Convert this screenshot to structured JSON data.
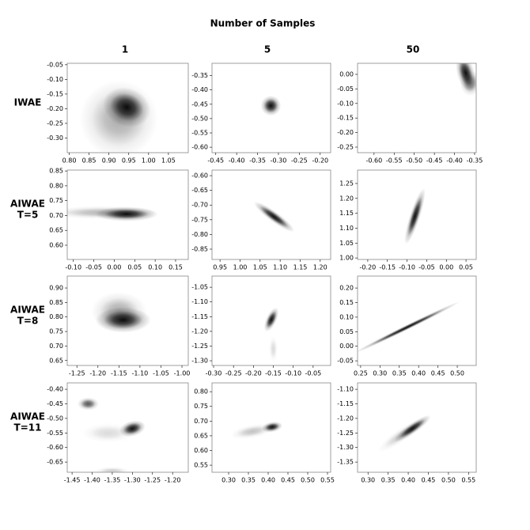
{
  "title": "Number of Samples",
  "columns": [
    "1",
    "5",
    "50"
  ],
  "rows": [
    [
      "IWAE"
    ],
    [
      "AIWAE",
      "T=5"
    ],
    [
      "AIWAE",
      "T=8"
    ],
    [
      "AIWAE",
      "T=11"
    ]
  ],
  "chart_data": [
    {
      "type": "density",
      "xlim": [
        0.795,
        1.1
      ],
      "ylim": [
        -0.35,
        -0.045
      ],
      "xticks": [
        {
          "value": 0.8,
          "label": "0.80"
        },
        0.85,
        {
          "value": 0.9,
          "label": "0.90"
        },
        0.95,
        {
          "value": 1,
          "label": "1.00"
        },
        1.05
      ],
      "yticks": [
        -0.05,
        {
          "value": -0.1,
          "label": "-0.10"
        },
        -0.15,
        {
          "value": -0.2,
          "label": "-0.20"
        },
        -0.25,
        {
          "value": -0.3,
          "label": "-0.30"
        }
      ],
      "modes": [
        {
          "x": 0.945,
          "y": -0.195,
          "sx": 0.028,
          "sy": 0.03,
          "angle": 20,
          "weight": 1
        },
        {
          "x": 0.925,
          "y": -0.235,
          "sx": 0.045,
          "sy": 0.06,
          "angle": 0,
          "weight": 0.35
        }
      ]
    },
    {
      "type": "density",
      "xlim": [
        -0.459,
        -0.175
      ],
      "ylim": [
        -0.619,
        -0.307
      ],
      "xticks": [
        -0.45,
        {
          "value": -0.4,
          "label": "-0.40"
        },
        -0.35,
        {
          "value": -0.3,
          "label": "-0.30"
        },
        -0.25,
        {
          "value": -0.2,
          "label": "-0.20"
        }
      ],
      "yticks": [
        -0.35,
        {
          "value": -0.4,
          "label": "-0.40"
        },
        -0.45,
        {
          "value": -0.5,
          "label": "-0.50"
        },
        -0.55,
        {
          "value": -0.6,
          "label": "-0.60"
        }
      ],
      "modes": [
        {
          "x": -0.318,
          "y": -0.455,
          "sx": 0.011,
          "sy": 0.016,
          "angle": 20,
          "weight": 1
        }
      ]
    },
    {
      "type": "density",
      "xlim": [
        -0.641,
        -0.346
      ],
      "ylim": [
        -0.269,
        0.038
      ],
      "xticks": [
        {
          "value": -0.6,
          "label": "-0.60"
        },
        -0.55,
        {
          "value": -0.5,
          "label": "-0.50"
        },
        -0.45,
        {
          "value": -0.4,
          "label": "-0.40"
        },
        -0.35
      ],
      "yticks": [
        {
          "value": 0,
          "label": "0.00"
        },
        -0.05,
        {
          "value": -0.1,
          "label": "-0.10"
        },
        -0.15,
        {
          "value": -0.2,
          "label": "-0.20"
        },
        -0.25
      ],
      "modes": [
        {
          "x": -0.372,
          "y": 0.005,
          "sx": 0.01,
          "sy": 0.03,
          "angle": -15,
          "weight": 1
        },
        {
          "x": -0.36,
          "y": -0.03,
          "sx": 0.012,
          "sy": 0.02,
          "angle": 0,
          "weight": 0.5
        }
      ]
    },
    {
      "type": "density",
      "xlim": [
        -0.115,
        0.181
      ],
      "ylim": [
        0.552,
        0.853
      ],
      "xticks": [
        {
          "value": -0.1,
          "label": "-0.10"
        },
        -0.05,
        {
          "value": 0,
          "label": "0.00"
        },
        0.05,
        {
          "value": 0.1,
          "label": "0.10"
        },
        0.15
      ],
      "yticks": [
        0.85,
        {
          "value": 0.8,
          "label": "0.80"
        },
        0.75,
        {
          "value": 0.7,
          "label": "0.70"
        },
        0.65,
        {
          "value": 0.6,
          "label": "0.60"
        }
      ],
      "modes": [
        {
          "x": 0.03,
          "y": 0.705,
          "sx": 0.035,
          "sy": 0.011,
          "angle": 0,
          "weight": 1
        },
        {
          "x": -0.03,
          "y": 0.71,
          "sx": 0.06,
          "sy": 0.01,
          "angle": 0,
          "weight": 0.3
        }
      ]
    },
    {
      "type": "density",
      "xlim": [
        0.93,
        1.226
      ],
      "ylim": [
        -0.885,
        -0.581
      ],
      "xticks": [
        0.95,
        {
          "value": 1,
          "label": "1.00"
        },
        1.05,
        {
          "value": 1.1,
          "label": "1.10"
        },
        1.15,
        {
          "value": 1.2,
          "label": "1.20"
        }
      ],
      "yticks": [
        {
          "value": -0.6,
          "label": "-0.60"
        },
        -0.65,
        {
          "value": -0.7,
          "label": "-0.70"
        },
        -0.75,
        {
          "value": -0.8,
          "label": "-0.80"
        },
        -0.85
      ],
      "modes": [
        {
          "x": 1.085,
          "y": -0.74,
          "sx": 0.028,
          "sy": 0.008,
          "angle": 36,
          "weight": 1
        }
      ]
    },
    {
      "type": "density",
      "xlim": [
        -0.226,
        0.076
      ],
      "ylim": [
        0.995,
        1.295
      ],
      "xticks": [
        {
          "value": -0.2,
          "label": "-0.20"
        },
        -0.15,
        {
          "value": -0.1,
          "label": "-0.10"
        },
        -0.05,
        {
          "value": 0,
          "label": "0.00"
        },
        0.05
      ],
      "yticks": [
        1.25,
        {
          "value": 1.2,
          "label": "1.20"
        },
        1.15,
        {
          "value": 1.1,
          "label": "1.10"
        },
        1.05,
        {
          "value": 1,
          "label": "1.00"
        }
      ],
      "modes": [
        {
          "x": -0.08,
          "y": 1.14,
          "sx": 0.006,
          "sy": 0.045,
          "angle": 18,
          "weight": 1
        }
      ]
    },
    {
      "type": "density",
      "xlim": [
        -1.273,
        -0.985
      ],
      "ylim": [
        0.633,
        0.941
      ],
      "xticks": [
        -1.25,
        {
          "value": -1.2,
          "label": "-1.20"
        },
        -1.15,
        {
          "value": -1.1,
          "label": "-1.10"
        },
        -1.05,
        {
          "value": -1,
          "label": "-1.00"
        }
      ],
      "yticks": [
        {
          "value": 0.9,
          "label": "0.90"
        },
        0.85,
        {
          "value": 0.8,
          "label": "0.80"
        },
        0.75,
        {
          "value": 0.7,
          "label": "0.70"
        },
        0.65
      ],
      "modes": [
        {
          "x": -1.14,
          "y": 0.79,
          "sx": 0.03,
          "sy": 0.02,
          "angle": 0,
          "weight": 1
        },
        {
          "x": -1.15,
          "y": 0.82,
          "sx": 0.03,
          "sy": 0.03,
          "angle": 0,
          "weight": 0.35
        }
      ]
    },
    {
      "type": "density",
      "xlim": [
        -0.304,
        -0.006
      ],
      "ylim": [
        -1.316,
        -1.012
      ],
      "xticks": [
        {
          "value": -0.3,
          "label": "-0.30"
        },
        -0.25,
        {
          "value": -0.2,
          "label": "-0.20"
        },
        -0.15,
        {
          "value": -0.1,
          "label": "-0.10"
        },
        -0.05
      ],
      "yticks": [
        -1.05,
        {
          "value": -1.1,
          "label": "-1.10"
        },
        -1.15,
        {
          "value": -1.2,
          "label": "-1.20"
        },
        -1.25,
        {
          "value": -1.3,
          "label": "-1.30"
        }
      ],
      "modes": [
        {
          "x": -0.155,
          "y": -1.16,
          "sx": 0.006,
          "sy": 0.02,
          "angle": 25,
          "weight": 1
        },
        {
          "x": -0.15,
          "y": -1.26,
          "sx": 0.005,
          "sy": 0.02,
          "angle": 0,
          "weight": 0.15
        }
      ]
    },
    {
      "type": "density",
      "xlim": [
        0.242,
        0.549
      ],
      "ylim": [
        -0.066,
        0.241
      ],
      "xticks": [
        0.25,
        {
          "value": 0.3,
          "label": "0.30"
        },
        0.35,
        {
          "value": 0.4,
          "label": "0.40"
        },
        0.45,
        {
          "value": 0.5,
          "label": "0.50"
        }
      ],
      "yticks": [
        {
          "value": 0.2,
          "label": "0.20"
        },
        0.15,
        {
          "value": 0.1,
          "label": "0.10"
        },
        0.05,
        {
          "value": 0,
          "label": "0.00"
        },
        -0.05
      ],
      "modes": [
        {
          "x": 0.37,
          "y": 0.065,
          "sx": 0.07,
          "sy": 0.004,
          "angle": -26,
          "weight": 1
        }
      ]
    },
    {
      "type": "density",
      "xlim": [
        -1.462,
        -1.161
      ],
      "ylim": [
        -0.685,
        -0.378
      ],
      "xticks": [
        -1.45,
        {
          "value": -1.4,
          "label": "-1.40"
        },
        -1.35,
        {
          "value": -1.3,
          "label": "-1.30"
        },
        -1.25,
        {
          "value": -1.2,
          "label": "-1.20"
        }
      ],
      "yticks": [
        {
          "value": -0.4,
          "label": "-0.40"
        },
        -0.45,
        {
          "value": -0.5,
          "label": "-0.50"
        },
        -0.55,
        {
          "value": -0.6,
          "label": "-0.60"
        },
        -0.65
      ],
      "modes": [
        {
          "x": -1.3,
          "y": -0.535,
          "sx": 0.015,
          "sy": 0.012,
          "angle": -15,
          "weight": 1
        },
        {
          "x": -1.41,
          "y": -0.45,
          "sx": 0.012,
          "sy": 0.01,
          "angle": 0,
          "weight": 0.7
        },
        {
          "x": -1.35,
          "y": -0.68,
          "sx": 0.02,
          "sy": 0.006,
          "angle": 0,
          "weight": 0.2
        },
        {
          "x": -1.36,
          "y": -0.55,
          "sx": 0.03,
          "sy": 0.015,
          "angle": 0,
          "weight": 0.15
        }
      ]
    },
    {
      "type": "density",
      "xlim": [
        0.258,
        0.558
      ],
      "ylim": [
        0.526,
        0.83
      ],
      "xticks": [
        {
          "value": 0.3,
          "label": "0.30"
        },
        0.35,
        {
          "value": 0.4,
          "label": "0.40"
        },
        0.45,
        {
          "value": 0.5,
          "label": "0.50"
        },
        0.55
      ],
      "yticks": [
        {
          "value": 0.8,
          "label": "0.80"
        },
        0.75,
        {
          "value": 0.7,
          "label": "0.70"
        },
        0.65,
        {
          "value": 0.6,
          "label": "0.60"
        },
        0.55
      ],
      "modes": [
        {
          "x": 0.41,
          "y": 0.68,
          "sx": 0.012,
          "sy": 0.008,
          "angle": -10,
          "weight": 1
        },
        {
          "x": 0.36,
          "y": 0.665,
          "sx": 0.025,
          "sy": 0.01,
          "angle": -10,
          "weight": 0.25
        }
      ]
    },
    {
      "type": "density",
      "xlim": [
        0.274,
        0.569
      ],
      "ylim": [
        -1.385,
        -1.078
      ],
      "xticks": [
        {
          "value": 0.3,
          "label": "0.30"
        },
        0.35,
        {
          "value": 0.4,
          "label": "0.40"
        },
        0.45,
        {
          "value": 0.5,
          "label": "0.50"
        },
        0.55
      ],
      "yticks": [
        {
          "value": -1.1,
          "label": "-1.10"
        },
        -1.15,
        {
          "value": -1.2,
          "label": "-1.20"
        },
        -1.25,
        {
          "value": -1.3,
          "label": "-1.30"
        },
        -1.35
      ],
      "modes": [
        {
          "x": 0.41,
          "y": -1.235,
          "sx": 0.025,
          "sy": 0.008,
          "angle": -35,
          "weight": 1
        },
        {
          "x": 0.38,
          "y": -1.26,
          "sx": 0.03,
          "sy": 0.01,
          "angle": -35,
          "weight": 0.2
        }
      ]
    }
  ]
}
